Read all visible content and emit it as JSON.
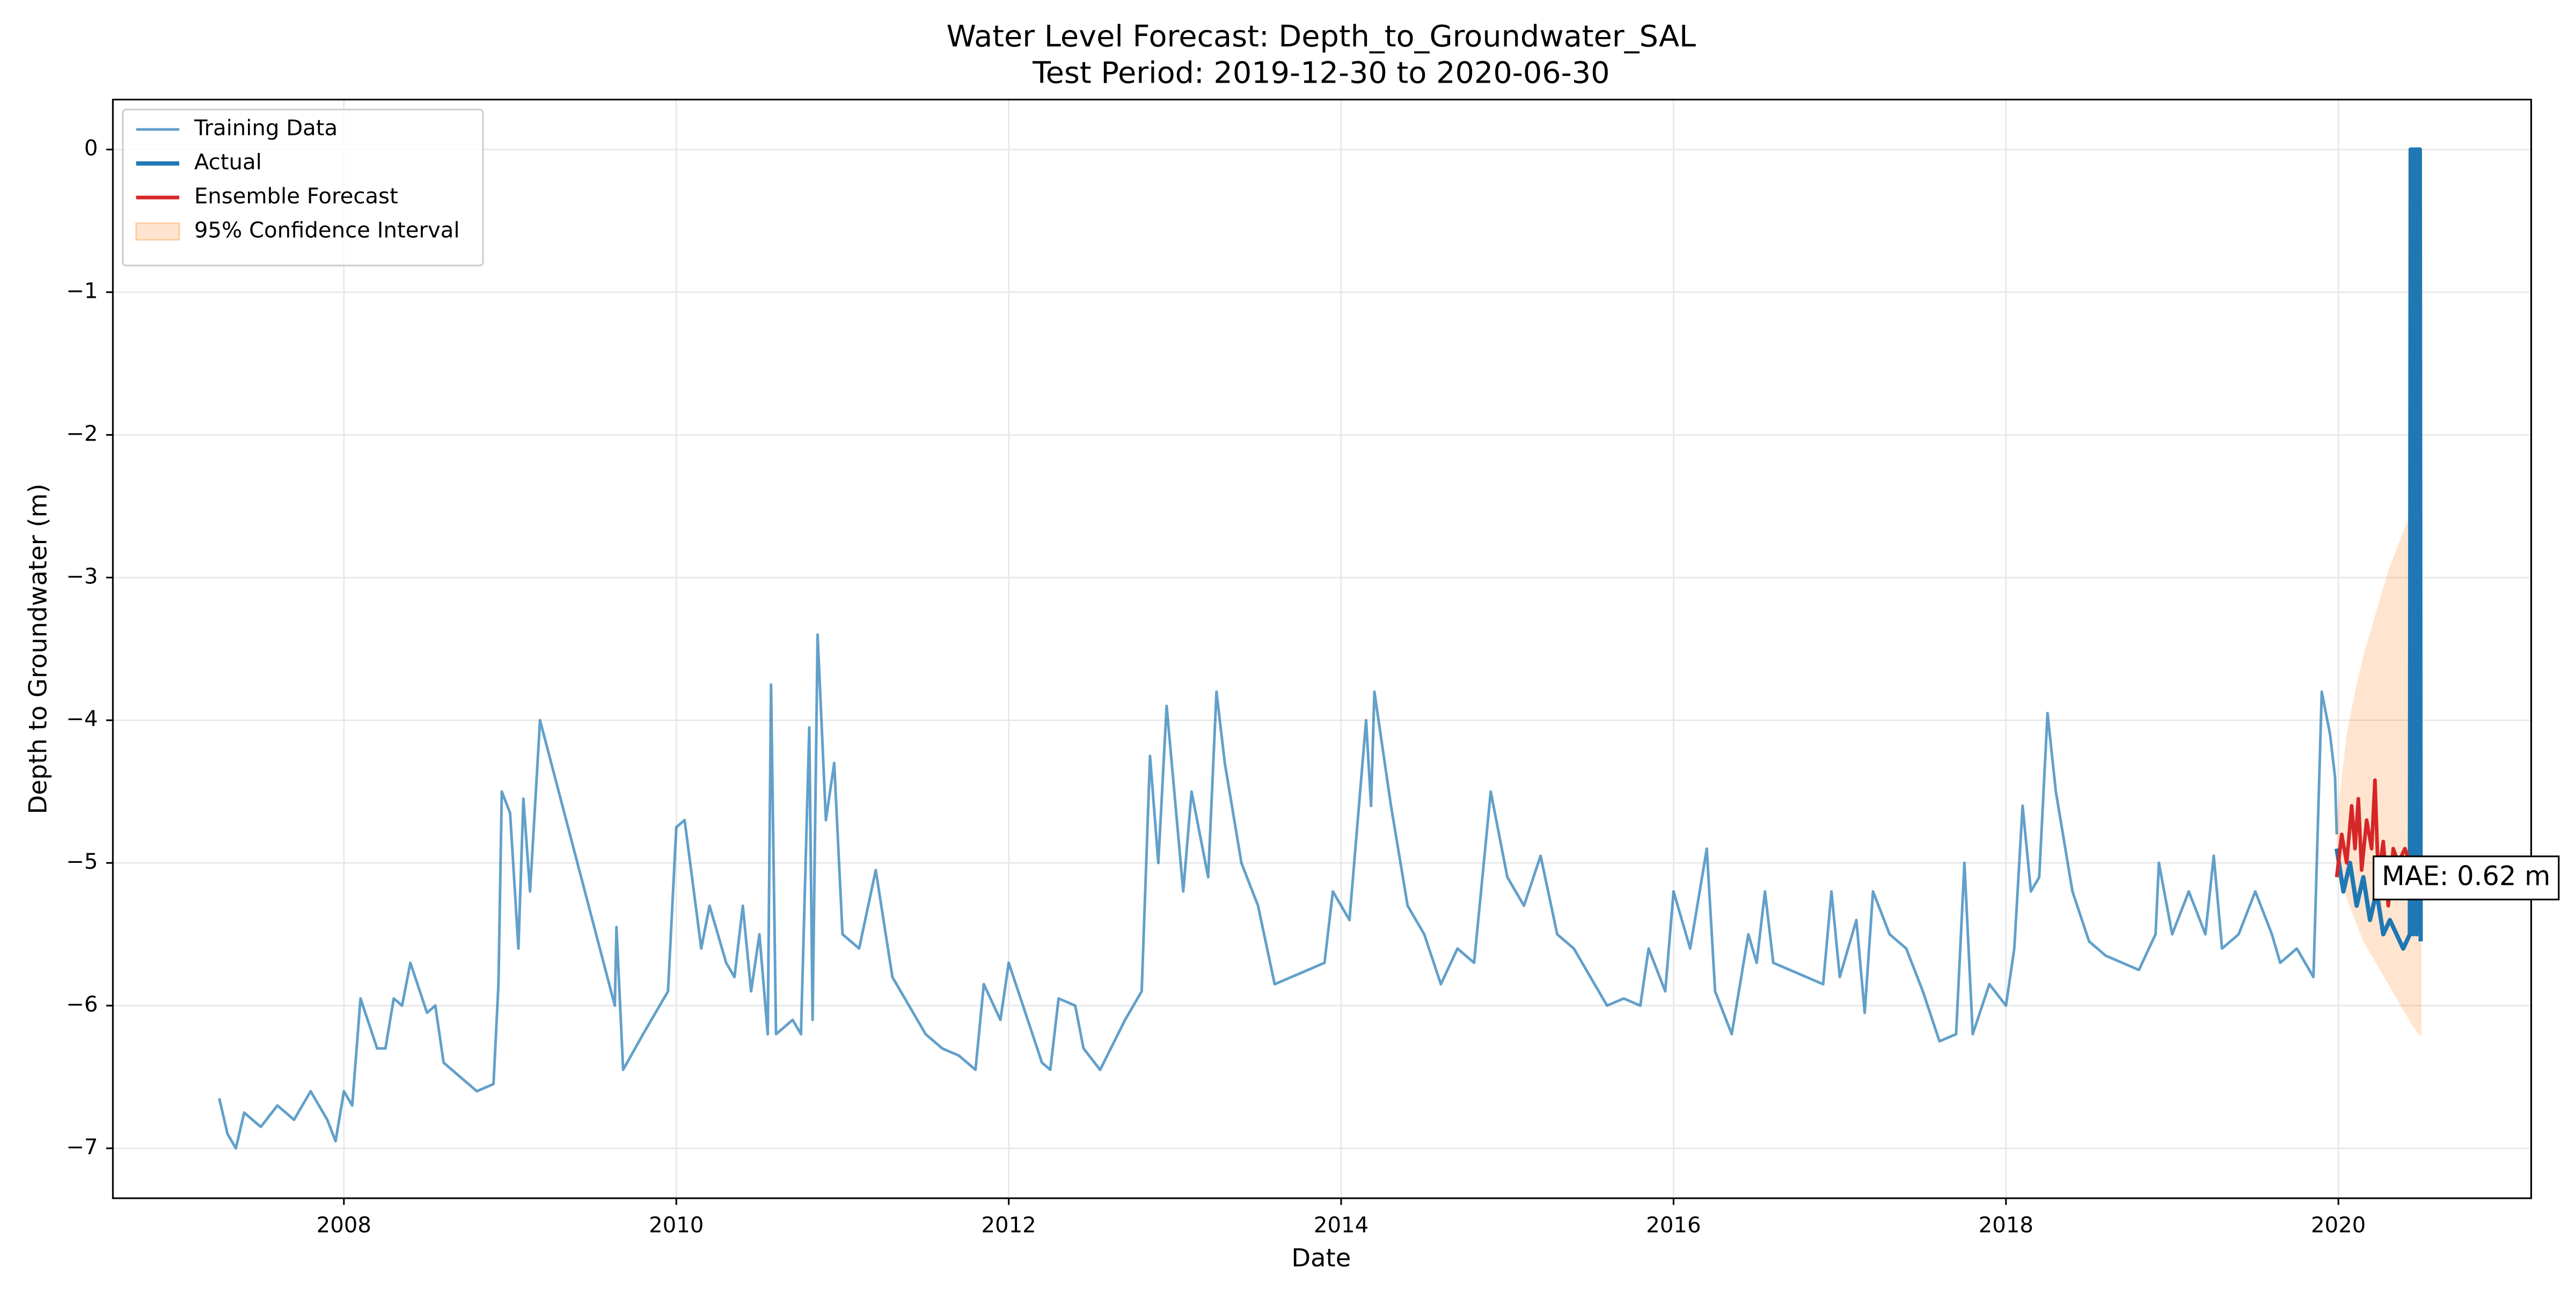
{
  "chart_data": {
    "type": "line",
    "title": "Water Level Forecast: Depth_to_Groundwater_SAL",
    "subtitle": "Test Period: 2019-12-30 to 2020-06-30",
    "xlabel": "Date",
    "ylabel": "Depth to Groundwater (m)",
    "xlim": [
      2006.61,
      2021.16
    ],
    "ylim": [
      -7.35,
      0.35
    ],
    "xticks": [
      2008,
      2010,
      2012,
      2014,
      2016,
      2018,
      2020
    ],
    "yticks": [
      0,
      {
        "value": -1,
        "label": "−1"
      },
      {
        "value": -2,
        "label": "−2"
      },
      {
        "value": -3,
        "label": "−3"
      },
      {
        "value": -4,
        "label": "−4"
      },
      {
        "value": -5,
        "label": "−5"
      },
      {
        "value": -6,
        "label": "−6"
      },
      {
        "value": -7,
        "label": "−7"
      }
    ],
    "grid": true,
    "legend": "upper left",
    "series": [
      {
        "name": "Training Data",
        "color": "#1f77b4",
        "opacity": 0.7,
        "width": 1.6,
        "x": [
          2007.25,
          2007.3,
          2007.35,
          2007.4,
          2007.5,
          2007.6,
          2007.7,
          2007.8,
          2007.9,
          2007.95,
          2008.0,
          2008.05,
          2008.1,
          2008.2,
          2008.25,
          2008.3,
          2008.35,
          2008.4,
          2008.5,
          2008.55,
          2008.6,
          2008.7,
          2008.8,
          2008.9,
          2008.93,
          2008.95,
          2009.0,
          2009.05,
          2009.08,
          2009.12,
          2009.18,
          2009.63,
          2009.64,
          2009.68,
          2009.8,
          2009.95,
          2010.0,
          2010.05,
          2010.15,
          2010.2,
          2010.3,
          2010.35,
          2010.4,
          2010.45,
          2010.5,
          2010.55,
          2010.57,
          2010.6,
          2010.7,
          2010.75,
          2010.8,
          2010.82,
          2010.85,
          2010.9,
          2010.95,
          2011.0,
          2011.1,
          2011.2,
          2011.3,
          2011.4,
          2011.5,
          2011.6,
          2011.7,
          2011.8,
          2011.85,
          2011.95,
          2012.0,
          2012.1,
          2012.2,
          2012.25,
          2012.3,
          2012.4,
          2012.45,
          2012.55,
          2012.7,
          2012.8,
          2012.85,
          2012.9,
          2012.95,
          2013.05,
          2013.1,
          2013.2,
          2013.25,
          2013.3,
          2013.4,
          2013.5,
          2013.6,
          2013.7,
          2013.8,
          2013.9,
          2013.95,
          2014.05,
          2014.15,
          2014.18,
          2014.2,
          2014.3,
          2014.4,
          2014.5,
          2014.6,
          2014.7,
          2014.8,
          2014.9,
          2015.0,
          2015.1,
          2015.2,
          2015.3,
          2015.4,
          2015.5,
          2015.6,
          2015.7,
          2015.8,
          2015.85,
          2015.95,
          2016.0,
          2016.1,
          2016.2,
          2016.25,
          2016.35,
          2016.45,
          2016.5,
          2016.55,
          2016.6,
          2016.7,
          2016.8,
          2016.9,
          2016.95,
          2017.0,
          2017.1,
          2017.15,
          2017.2,
          2017.3,
          2017.4,
          2017.5,
          2017.6,
          2017.7,
          2017.75,
          2017.8,
          2017.9,
          2018.0,
          2018.05,
          2018.1,
          2018.15,
          2018.2,
          2018.25,
          2018.3,
          2018.4,
          2018.5,
          2018.6,
          2018.7,
          2018.8,
          2018.9,
          2018.92,
          2019.0,
          2019.1,
          2019.2,
          2019.25,
          2019.3,
          2019.4,
          2019.5,
          2019.6,
          2019.65,
          2019.75,
          2019.85,
          2019.9,
          2019.95,
          2019.98,
          2019.99
        ],
        "values": [
          -6.65,
          -6.9,
          -7.0,
          -6.75,
          -6.85,
          -6.7,
          -6.8,
          -6.6,
          -6.8,
          -6.95,
          -6.6,
          -6.7,
          -5.95,
          -6.3,
          -6.3,
          -5.95,
          -6.0,
          -5.7,
          -6.05,
          -6.0,
          -6.4,
          -6.5,
          -6.6,
          -6.55,
          -5.85,
          -4.5,
          -4.65,
          -5.6,
          -4.55,
          -5.2,
          -4.0,
          -6.0,
          -5.45,
          -6.45,
          -6.2,
          -5.9,
          -4.75,
          -4.7,
          -5.6,
          -5.3,
          -5.7,
          -5.8,
          -5.3,
          -5.9,
          -5.5,
          -6.2,
          -3.75,
          -6.2,
          -6.1,
          -6.2,
          -4.05,
          -6.1,
          -3.4,
          -4.7,
          -4.3,
          -5.5,
          -5.6,
          -5.05,
          -5.8,
          -6.0,
          -6.2,
          -6.3,
          -6.35,
          -6.45,
          -5.85,
          -6.1,
          -5.7,
          -6.05,
          -6.4,
          -6.45,
          -5.95,
          -6.0,
          -6.3,
          -6.45,
          -6.1,
          -5.9,
          -4.25,
          -5.0,
          -3.9,
          -5.2,
          -4.5,
          -5.1,
          -3.8,
          -4.3,
          -5.0,
          -5.3,
          -5.85,
          -5.8,
          -5.75,
          -5.7,
          -5.2,
          -5.4,
          -4.0,
          -4.6,
          -3.8,
          -4.6,
          -5.3,
          -5.5,
          -5.85,
          -5.6,
          -5.7,
          -4.5,
          -5.1,
          -5.3,
          -4.95,
          -5.5,
          -5.6,
          -5.8,
          -6.0,
          -5.95,
          -6.0,
          -5.6,
          -5.9,
          -5.2,
          -5.6,
          -4.9,
          -5.9,
          -6.2,
          -5.5,
          -5.7,
          -5.2,
          -5.7,
          -5.75,
          -5.8,
          -5.85,
          -5.2,
          -5.8,
          -5.4,
          -6.05,
          -5.2,
          -5.5,
          -5.6,
          -5.9,
          -6.25,
          -6.2,
          -5.0,
          -6.2,
          -5.85,
          -6.0,
          -5.6,
          -4.6,
          -5.2,
          -5.1,
          -3.95,
          -4.5,
          -5.2,
          -5.55,
          -5.65,
          -5.7,
          -5.75,
          -5.5,
          -5.0,
          -5.5,
          -5.2,
          -5.5,
          -4.95,
          -5.6,
          -5.5,
          -5.2,
          -5.5,
          -5.7,
          -5.6,
          -5.8,
          -3.8,
          -4.1,
          -4.4,
          -4.8
        ]
      },
      {
        "name": "Actual",
        "color": "#1f77b4",
        "opacity": 1,
        "width": 2.6,
        "x": [
          2019.99,
          2020.03,
          2020.07,
          2020.11,
          2020.15,
          2020.19,
          2020.23,
          2020.27,
          2020.31,
          2020.35,
          2020.39,
          2020.43,
          2020.435,
          2020.44,
          2020.445,
          2020.45,
          2020.455,
          2020.46,
          2020.465,
          2020.47,
          2020.475,
          2020.48,
          2020.485,
          2020.49,
          2020.495
        ],
        "values": [
          -4.9,
          -5.2,
          -5.0,
          -5.3,
          -5.1,
          -5.4,
          -5.2,
          -5.5,
          -5.4,
          -5.5,
          -5.6,
          -5.5,
          0,
          -5.4,
          0,
          -5.5,
          0,
          -5.4,
          0,
          -5.5,
          0,
          -5.4,
          0,
          0,
          -5.55
        ]
      },
      {
        "name": "Ensemble Forecast",
        "color": "#d62728",
        "opacity": 1,
        "width": 2.2,
        "x": [
          2019.99,
          2020.02,
          2020.05,
          2020.08,
          2020.1,
          2020.12,
          2020.14,
          2020.17,
          2020.2,
          2020.22,
          2020.24,
          2020.27,
          2020.3,
          2020.33,
          2020.36,
          2020.4,
          2020.43
        ],
        "values": [
          -5.1,
          -4.8,
          -5.0,
          -4.6,
          -4.9,
          -4.55,
          -5.05,
          -4.7,
          -4.9,
          -4.42,
          -5.1,
          -4.85,
          -5.3,
          -4.9,
          -5.0,
          -4.9,
          -5.0
        ]
      }
    ],
    "band": {
      "name": "95% Confidence Interval",
      "color": "#ff7f0e",
      "opacity": 0.2,
      "x": [
        2019.99,
        2020.05,
        2020.1,
        2020.15,
        2020.2,
        2020.25,
        2020.3,
        2020.35,
        2020.4,
        2020.45,
        2020.5
      ],
      "upper": [
        -4.7,
        -4.1,
        -3.8,
        -3.55,
        -3.35,
        -3.15,
        -2.95,
        -2.8,
        -2.65,
        -2.5,
        -2.4
      ],
      "lower": [
        -5.0,
        -5.25,
        -5.4,
        -5.55,
        -5.65,
        -5.75,
        -5.85,
        -5.95,
        -6.05,
        -6.15,
        -6.22
      ]
    },
    "annotation": "MAE: 0.62 m"
  }
}
